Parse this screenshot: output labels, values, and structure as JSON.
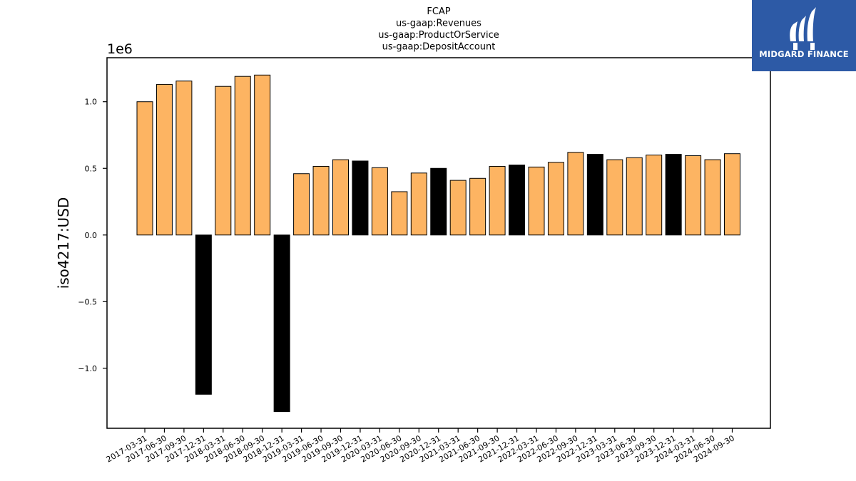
{
  "chart_data": {
    "type": "bar",
    "title_lines": [
      "FCAP",
      "us-gaap:Revenues",
      "us-gaap:ProductOrService",
      "us-gaap:DepositAccount"
    ],
    "ylabel": "iso4217:USD",
    "scale_label": "1e6",
    "ylim": [
      -1.45,
      1.33
    ],
    "yticks": [
      -1.0,
      -0.5,
      0.0,
      0.5,
      1.0
    ],
    "ytick_labels": [
      "−1.0",
      "−0.5",
      "0.0",
      "0.5",
      "1.0"
    ],
    "categories": [
      "2017-03-31",
      "2017-06-30",
      "2017-09-30",
      "2017-12-31",
      "2018-03-31",
      "2018-06-30",
      "2018-09-30",
      "2018-12-31",
      "2019-03-31",
      "2019-06-30",
      "2019-09-30",
      "2019-12-31",
      "2020-03-31",
      "2020-06-30",
      "2020-09-30",
      "2020-12-31",
      "2021-03-31",
      "2021-06-30",
      "2021-09-30",
      "2021-12-31",
      "2022-03-31",
      "2022-06-30",
      "2022-09-30",
      "2022-12-31",
      "2023-03-31",
      "2023-06-30",
      "2023-09-30",
      "2023-12-31",
      "2024-03-31",
      "2024-06-30",
      "2024-09-30"
    ],
    "values": [
      1.0,
      1.13,
      1.155,
      -1.195,
      1.115,
      1.19,
      1.2,
      -1.325,
      0.46,
      0.515,
      0.565,
      0.555,
      0.505,
      0.325,
      0.465,
      0.5,
      0.41,
      0.425,
      0.515,
      0.525,
      0.51,
      0.545,
      0.62,
      0.605,
      0.565,
      0.58,
      0.6,
      0.605,
      0.595,
      0.565,
      0.61
    ],
    "fourth_quarter_flags": [
      false,
      false,
      false,
      true,
      false,
      false,
      false,
      true,
      false,
      false,
      false,
      true,
      false,
      false,
      false,
      true,
      false,
      false,
      false,
      true,
      false,
      false,
      false,
      true,
      false,
      false,
      false,
      true,
      false,
      false,
      false
    ],
    "colors": {
      "quarter": "#fdb462",
      "year_end": "#000000",
      "edge": "#000000"
    },
    "grid": false,
    "legend": "none"
  },
  "logo": {
    "text": "MIDGARD FINANCE",
    "background": "#2d5aa6"
  }
}
